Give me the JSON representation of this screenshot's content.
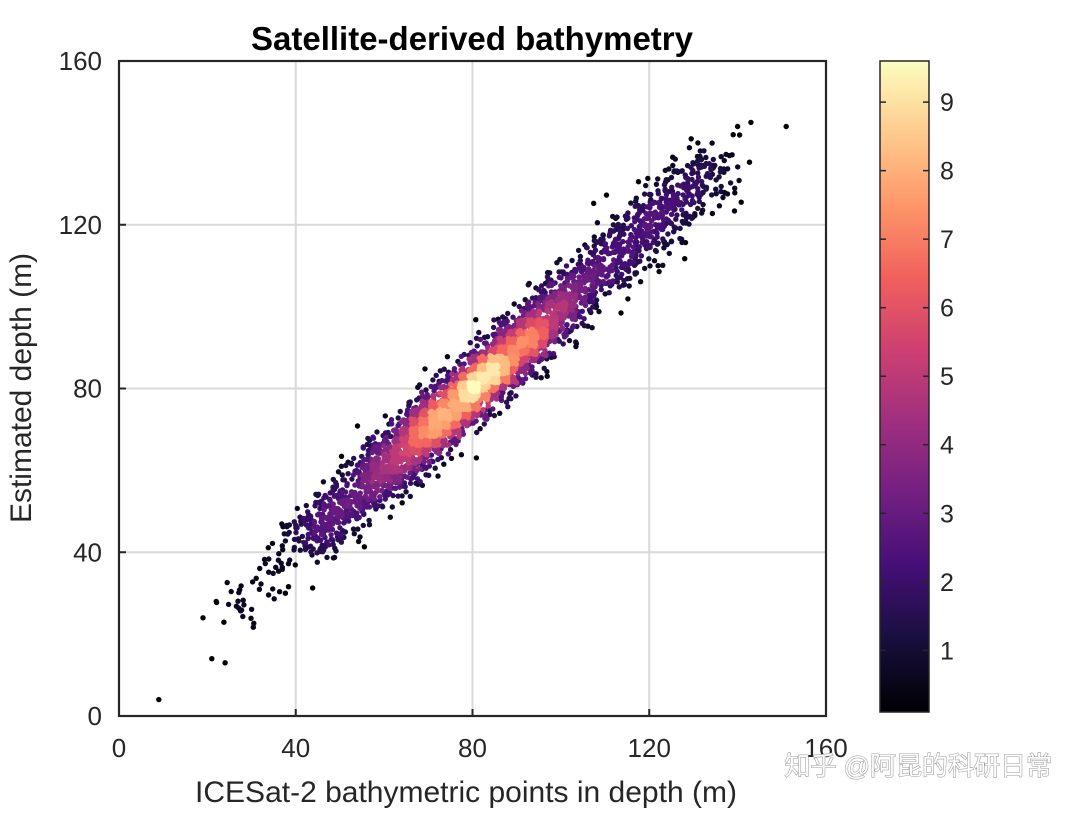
{
  "chart_data": {
    "type": "scatter",
    "title": "Satellite-derived bathymetry",
    "xlabel": "ICESat-2 bathymetric points in depth (m)",
    "ylabel": "Estimated depth (m)",
    "xlim": [
      0,
      160
    ],
    "ylim": [
      0,
      160
    ],
    "xticks": [
      "0",
      "40",
      "80",
      "120",
      "160"
    ],
    "yticks": [
      "0",
      "40",
      "80",
      "120",
      "160"
    ],
    "grid": true,
    "colormap": "magma",
    "colorbar": {
      "range": [
        0.1,
        9.6
      ],
      "ticks": [
        "1",
        "2",
        "3",
        "4",
        "5",
        "6",
        "7",
        "8",
        "9"
      ],
      "position": "right"
    },
    "point_density_note": "points colored by density",
    "trend": {
      "slope": 1.0,
      "intercept": 0
    },
    "outlier_points": [
      {
        "x": 9,
        "y": 4
      },
      {
        "x": 21,
        "y": 14
      },
      {
        "x": 24,
        "y": 13
      },
      {
        "x": 19,
        "y": 24
      },
      {
        "x": 22,
        "y": 28
      },
      {
        "x": 143,
        "y": 145
      },
      {
        "x": 151,
        "y": 144
      },
      {
        "x": 139,
        "y": 142
      },
      {
        "x": 131,
        "y": 140
      },
      {
        "x": 140,
        "y": 144
      }
    ],
    "point_cloud": {
      "x_range": [
        9,
        151
      ],
      "y_range": [
        4,
        145
      ],
      "density_peak": {
        "x": 80,
        "y": 80
      }
    }
  },
  "watermark": "知乎 @阿昆的科研日常",
  "colors": {
    "axes": "#262626",
    "grid": "#d9d9d9",
    "colormap_stops": [
      "#000004",
      "#180f3d",
      "#440f76",
      "#721f81",
      "#9e2f7f",
      "#cd4071",
      "#f1605d",
      "#fd9668",
      "#feca8d",
      "#fcfdbf"
    ]
  }
}
